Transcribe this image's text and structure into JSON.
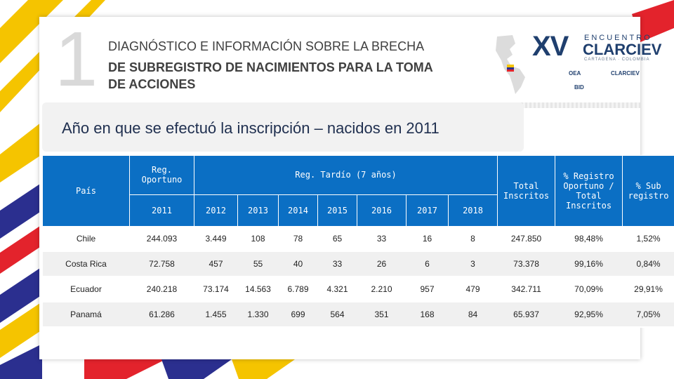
{
  "section_number": "1",
  "title_line1": "DIAGNÓSTICO E INFORMACIÓN SOBRE LA BRECHA",
  "title_line2": "DE SUBREGISTRO DE NACIMIENTOS PARA LA TOMA DE ACCIONES",
  "logo": {
    "xv": "XV",
    "encuentro": "ENCUENTRO",
    "clarciev": "CLARCIEV",
    "location": "CARTAGENA · COLOMBIA",
    "sponsors": [
      "OEA",
      "BID",
      "CLARCIEV"
    ]
  },
  "subtitle": "Año en que se efectuó la inscripción – nacidos en 2011",
  "table": {
    "headers": {
      "pais": "País",
      "reg_oportuno": "Reg. Oportuno",
      "reg_tardio": "Reg. Tardío (7 años)",
      "total_inscritos": "Total Inscritos",
      "pct_oportuno": "% Registro Oportuno / Total Inscritos",
      "pct_sub": "% Sub registro"
    },
    "years": [
      "2011",
      "2012",
      "2013",
      "2014",
      "2015",
      "2016",
      "2017",
      "2018"
    ],
    "rows": [
      {
        "pais": "Chile",
        "values": [
          "244.093",
          "3.449",
          "108",
          "78",
          "65",
          "33",
          "16",
          "8"
        ],
        "total": "247.850",
        "pct_op": "98,48%",
        "pct_sub": "1,52%"
      },
      {
        "pais": "Costa Rica",
        "values": [
          "72.758",
          "457",
          "55",
          "40",
          "33",
          "26",
          "6",
          "3"
        ],
        "total": "73.378",
        "pct_op": "99,16%",
        "pct_sub": "0,84%"
      },
      {
        "pais": "Ecuador",
        "values": [
          "240.218",
          "73.174",
          "14.563",
          "6.789",
          "4.321",
          "2.210",
          "957",
          "479"
        ],
        "total": "342.711",
        "pct_op": "70,09%",
        "pct_sub": "29,91%"
      },
      {
        "pais": "Panamá",
        "values": [
          "61.286",
          "1.455",
          "1.330",
          "699",
          "564",
          "351",
          "168",
          "84"
        ],
        "total": "65.937",
        "pct_op": "92,95%",
        "pct_sub": "7,05%"
      }
    ]
  }
}
